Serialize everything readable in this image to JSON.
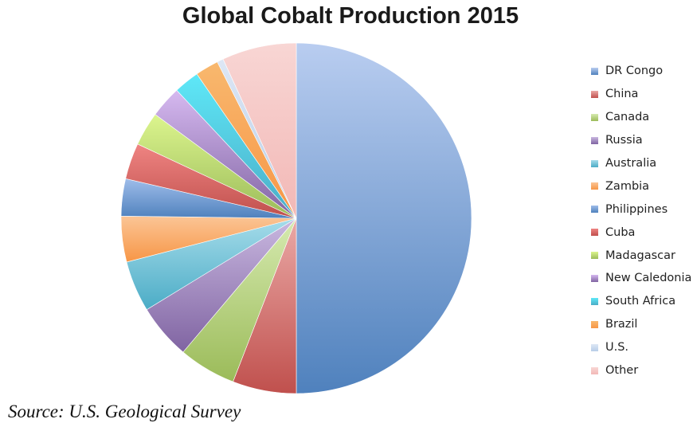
{
  "chart_data": {
    "type": "pie",
    "title": "Global Cobalt Production 2015",
    "unit": "percent share",
    "slices": [
      {
        "label": "DR Congo",
        "value": 51.0,
        "color": "#4f81bd",
        "light": "#b9cdf0"
      },
      {
        "label": "China",
        "value": 6.0,
        "color": "#c0504d",
        "light": "#eaa9a6"
      },
      {
        "label": "Canada",
        "value": 5.4,
        "color": "#9bbb59",
        "light": "#d6eab0"
      },
      {
        "label": "Russia",
        "value": 5.2,
        "color": "#8064a2",
        "light": "#c9b8e0"
      },
      {
        "label": "Australia",
        "value": 4.8,
        "color": "#4bacc6",
        "light": "#a6dcea"
      },
      {
        "label": "Zambia",
        "value": 4.3,
        "color": "#f79646",
        "light": "#fbc596"
      },
      {
        "label": "Philippines",
        "value": 3.5,
        "color": "#4f81bd",
        "light": "#9fbdea"
      },
      {
        "label": "Cuba",
        "value": 3.4,
        "color": "#c0504d",
        "light": "#ef8482"
      },
      {
        "label": "Madagascar",
        "value": 3.2,
        "color": "#9bbb59",
        "light": "#dcf58e"
      },
      {
        "label": "New Caledonia",
        "value": 3.0,
        "color": "#8064a2",
        "light": "#d6b9f0"
      },
      {
        "label": "South Africa",
        "value": 2.4,
        "color": "#4bacc6",
        "light": "#5ee8f8"
      },
      {
        "label": "Brazil",
        "value": 2.2,
        "color": "#f79646",
        "light": "#f8b86e"
      },
      {
        "label": "U.S.",
        "value": 0.6,
        "color": "#b8cde8",
        "light": "#dde7f5"
      },
      {
        "label": "Other",
        "value": 7.0,
        "color": "#f2b8b6",
        "light": "#f8d6d4"
      }
    ]
  },
  "source": "Source: U.S. Geological Survey"
}
